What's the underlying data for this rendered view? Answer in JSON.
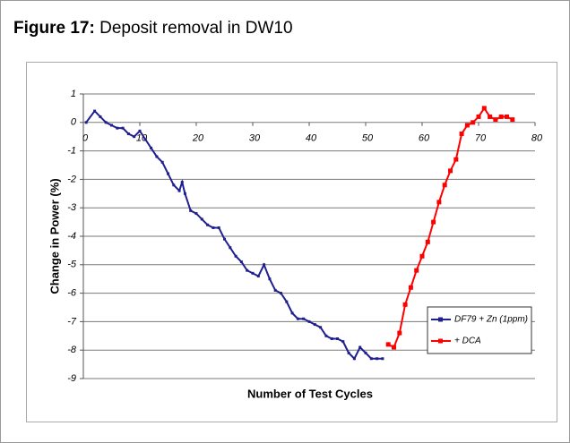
{
  "figure_label": "Figure 17:",
  "caption": "Deposit removal in DW10",
  "chart_data": {
    "type": "line",
    "x_label": "Number of Test Cycles",
    "y_label": "Change in Power (%)",
    "xlim": [
      0,
      80
    ],
    "ylim": [
      -9,
      1
    ],
    "xticks": [
      0,
      10,
      20,
      30,
      40,
      50,
      60,
      70,
      80
    ],
    "yticks": [
      1,
      0,
      -1,
      -2,
      -3,
      -4,
      -5,
      -6,
      -7,
      -8,
      -9
    ],
    "grid": true,
    "legend": "lower right",
    "series": [
      {
        "name": "DF79 + Zn (1ppm)",
        "color": "#1f1f8f",
        "x": [
          0.5,
          2,
          3,
          4,
          5,
          6,
          7,
          8,
          9,
          10,
          11,
          12,
          13,
          14,
          15,
          16,
          17,
          17.5,
          18,
          19,
          20,
          21,
          22,
          23,
          24,
          25,
          26,
          27,
          28,
          29,
          30,
          31,
          32,
          33,
          34,
          35,
          36,
          37,
          38,
          39,
          40,
          41,
          42,
          43,
          44,
          45,
          46,
          47,
          48,
          49,
          50,
          51,
          52,
          53
        ],
        "values": [
          0,
          0.4,
          0.2,
          0,
          -0.1,
          -0.2,
          -0.2,
          -0.4,
          -0.5,
          -0.3,
          -0.6,
          -0.9,
          -1.2,
          -1.4,
          -1.8,
          -2.2,
          -2.4,
          -2.1,
          -2.5,
          -3.1,
          -3.2,
          -3.4,
          -3.6,
          -3.7,
          -3.7,
          -4.1,
          -4.4,
          -4.7,
          -4.9,
          -5.2,
          -5.3,
          -5.4,
          -5.0,
          -5.5,
          -5.9,
          -6.0,
          -6.3,
          -6.7,
          -6.9,
          -6.9,
          -7.0,
          -7.1,
          -7.2,
          -7.5,
          -7.6,
          -7.6,
          -7.7,
          -8.1,
          -8.3,
          -7.9,
          -8.1,
          -8.3,
          -8.3,
          -8.3
        ]
      },
      {
        "name": "+ DCA",
        "color": "#ff0000",
        "x": [
          54,
          55,
          56,
          57,
          58,
          59,
          60,
          61,
          62,
          63,
          64,
          65,
          66,
          67,
          68,
          69,
          70,
          71,
          72,
          73,
          74,
          75,
          76
        ],
        "values": [
          -7.8,
          -7.9,
          -7.4,
          -6.4,
          -5.8,
          -5.2,
          -4.7,
          -4.2,
          -3.5,
          -2.8,
          -2.2,
          -1.7,
          -1.3,
          -0.4,
          -0.1,
          0,
          0.2,
          0.5,
          0.2,
          0.1,
          0.2,
          0.2,
          0.1
        ]
      }
    ]
  }
}
